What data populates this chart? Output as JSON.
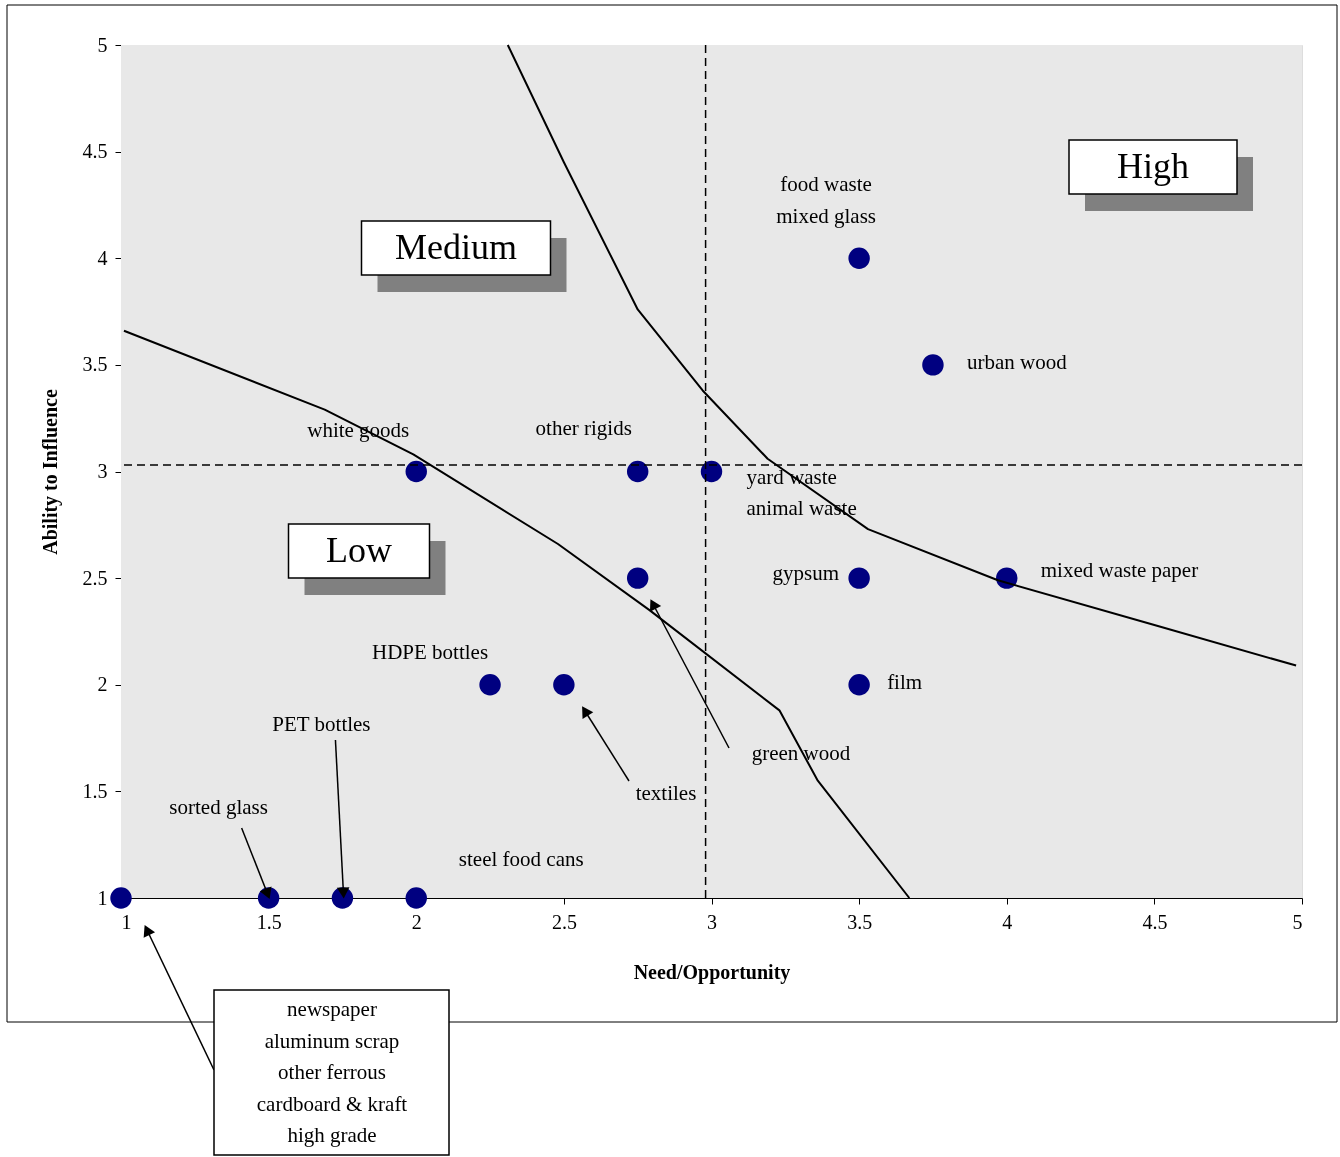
{
  "chart_data": {
    "type": "scatter",
    "xlabel": "Need/Opportunity",
    "ylabel": "Ability to Influence",
    "xlim": [
      1,
      5
    ],
    "ylim": [
      1,
      5
    ],
    "xticks": [
      1,
      1.5,
      2,
      2.5,
      3,
      3.5,
      4,
      4.5,
      5
    ],
    "yticks": [
      1,
      1.5,
      2,
      2.5,
      3,
      3.5,
      4,
      4.5,
      5
    ],
    "marker": "circle",
    "series": [
      {
        "type": "scatter",
        "color": "#000080",
        "x": [
          1,
          1.5,
          1.75,
          2,
          2.25,
          2.5,
          2,
          2.75,
          3,
          2.75,
          3.5,
          3.75,
          3.5,
          4,
          3.5
        ],
        "values": [
          1,
          1,
          1,
          1,
          2,
          2,
          3,
          3,
          3,
          2.5,
          4,
          3.5,
          2.5,
          2.5,
          2
        ]
      },
      {
        "type": "line",
        "marker": "none",
        "line_style": "solid",
        "color": "#000000",
        "x": [
          2.31,
          2.5,
          2.75,
          2.97,
          3.19,
          3.53,
          3.97,
          4.5,
          4.98
        ],
        "values": [
          5,
          4.45,
          3.76,
          3.38,
          3.06,
          2.73,
          2.49,
          2.28,
          2.09
        ]
      },
      {
        "type": "line",
        "marker": "none",
        "line_style": "solid",
        "color": "#000000",
        "x": [
          1.01,
          1.69,
          1.99,
          2.48,
          2.79,
          3.23,
          3.36,
          3.67
        ],
        "values": [
          3.66,
          3.29,
          3.08,
          2.66,
          2.35,
          1.88,
          1.55,
          1
        ]
      }
    ],
    "ref_lines": [
      {
        "axis": "x",
        "value": 2.98,
        "color": "#000000",
        "line_style": "dashed"
      },
      {
        "axis": "y",
        "value": 3.03,
        "color": "#000000",
        "line_style": "dashed"
      }
    ],
    "annotations": [
      "High",
      "Medium",
      "Low",
      {
        "text": "food waste\nmixed glass",
        "x": 3.5,
        "y": 4
      },
      {
        "text": "urban wood",
        "x": 3.75,
        "y": 3.5
      },
      {
        "text": "white goods",
        "x": 2,
        "y": 3
      },
      {
        "text": "other rigids",
        "x": 2.75,
        "y": 3
      },
      {
        "text": "yard waste\nanimal waste",
        "x": 3,
        "y": 3
      },
      {
        "text": "gypsum",
        "x": 3.5,
        "y": 2.5
      },
      {
        "text": "mixed waste paper",
        "x": 4,
        "y": 2.5
      },
      {
        "text": "film",
        "x": 3.5,
        "y": 2
      },
      {
        "text": "HDPE bottles",
        "x": 2.25,
        "y": 2
      },
      "textiles",
      "green wood",
      {
        "text": "PET bottles",
        "x": 1.75,
        "y": 1
      },
      {
        "text": "sorted glass",
        "x": 1.5,
        "y": 1
      },
      {
        "text": "steel food cans",
        "x": 2,
        "y": 1
      },
      "newspaper\naluminum scrap\nother ferrous\ncardboard & kraft\nhigh grade"
    ]
  }
}
